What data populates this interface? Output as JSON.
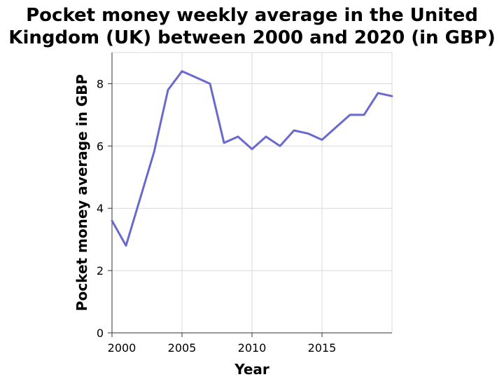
{
  "chart_data": {
    "type": "line",
    "title": "Pocket money weekly average in the United Kingdom (UK) between 2000 and 2020 (in GBP)",
    "title_lines": [
      "Pocket money weekly average in the United",
      "Kingdom (UK) between 2000 and 2020 (in GBP)"
    ],
    "xlabel": "Year",
    "ylabel": "Pocket money average in GBP",
    "xlim": [
      2000,
      2020
    ],
    "ylim": [
      0,
      9
    ],
    "xticks": [
      2000,
      2005,
      2010,
      2015
    ],
    "xtick_labels": [
      "2000",
      "2005",
      "2010",
      "2015"
    ],
    "yticks": [
      0,
      2,
      4,
      6,
      8
    ],
    "ytick_labels": [
      "0",
      "2",
      "4",
      "6",
      "8"
    ],
    "grid": true,
    "series": [
      {
        "color": "#6a6acc",
        "x": [
          2000,
          2001,
          2002,
          2003,
          2004,
          2005,
          2006,
          2007,
          2008,
          2009,
          2010,
          2011,
          2012,
          2013,
          2014,
          2015,
          2016,
          2017,
          2018,
          2019,
          2020
        ],
        "y": [
          3.6,
          2.8,
          4.3,
          5.8,
          7.8,
          8.4,
          8.2,
          8.0,
          6.1,
          6.3,
          5.9,
          6.3,
          6.0,
          6.5,
          6.4,
          6.2,
          6.6,
          7.0,
          7.0,
          7.7,
          7.6
        ]
      }
    ]
  }
}
